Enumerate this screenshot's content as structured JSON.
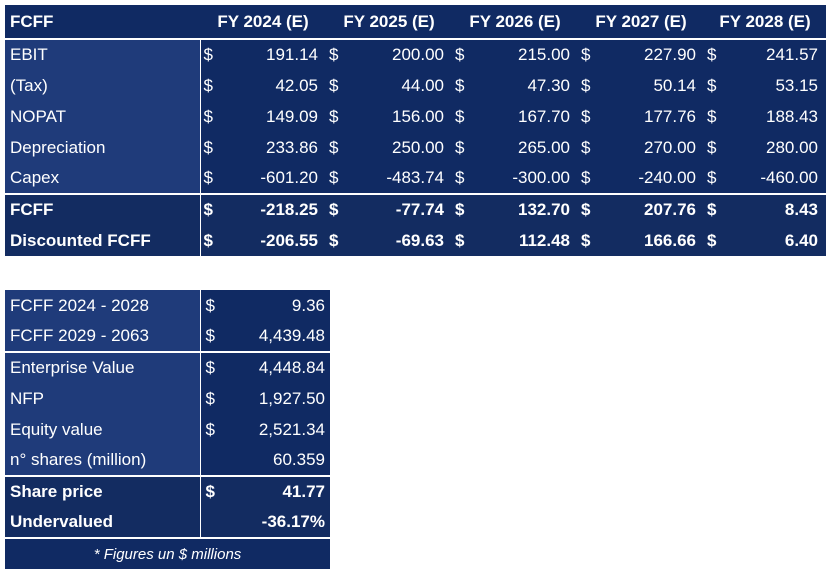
{
  "fcff_table": {
    "header": [
      "FCFF",
      "FY 2024 (E)",
      "FY 2025 (E)",
      "FY 2026 (E)",
      "FY 2027 (E)",
      "FY 2028 (E)"
    ],
    "currency": "$",
    "rows": [
      {
        "label": "EBIT",
        "values": [
          "191.14",
          "200.00",
          "215.00",
          "227.90",
          "241.57"
        ]
      },
      {
        "label": "(Tax)",
        "values": [
          "42.05",
          "44.00",
          "47.30",
          "50.14",
          "53.15"
        ]
      },
      {
        "label": "NOPAT",
        "values": [
          "149.09",
          "156.00",
          "167.70",
          "177.76",
          "188.43"
        ]
      },
      {
        "label": "Depreciation",
        "values": [
          "233.86",
          "250.00",
          "265.00",
          "270.00",
          "280.00"
        ]
      },
      {
        "label": "Capex",
        "values": [
          "-601.20",
          "-483.74",
          "-300.00",
          "-240.00",
          "-460.00"
        ]
      }
    ],
    "summary_rows": [
      {
        "label": "FCFF",
        "values": [
          "-218.25",
          "-77.74",
          "132.70",
          "207.76",
          "8.43"
        ]
      },
      {
        "label": "Discounted FCFF",
        "values": [
          "-206.55",
          "-69.63",
          "112.48",
          "166.66",
          "6.40"
        ]
      }
    ]
  },
  "valuation_table": {
    "currency": "$",
    "rows": [
      {
        "label": "FCFF 2024 - 2028",
        "value": "9.36",
        "has_currency": true
      },
      {
        "label": "FCFF 2029 - 2063",
        "value": "4,439.48",
        "has_currency": true
      },
      {
        "label": "Enterprise Value",
        "value": "4,448.84",
        "has_currency": true
      },
      {
        "label": "NFP",
        "value": "1,927.50",
        "has_currency": true
      },
      {
        "label": "Equity value",
        "value": "2,521.34",
        "has_currency": true
      },
      {
        "label": "n° shares (million)",
        "value": "60.359",
        "has_currency": false
      }
    ],
    "summary_rows": [
      {
        "label": "Share price",
        "value": "41.77",
        "has_currency": true
      },
      {
        "label": "Undervalued",
        "value": "-36.17%",
        "has_currency": false
      }
    ],
    "note": "* Figures un $ millions"
  }
}
